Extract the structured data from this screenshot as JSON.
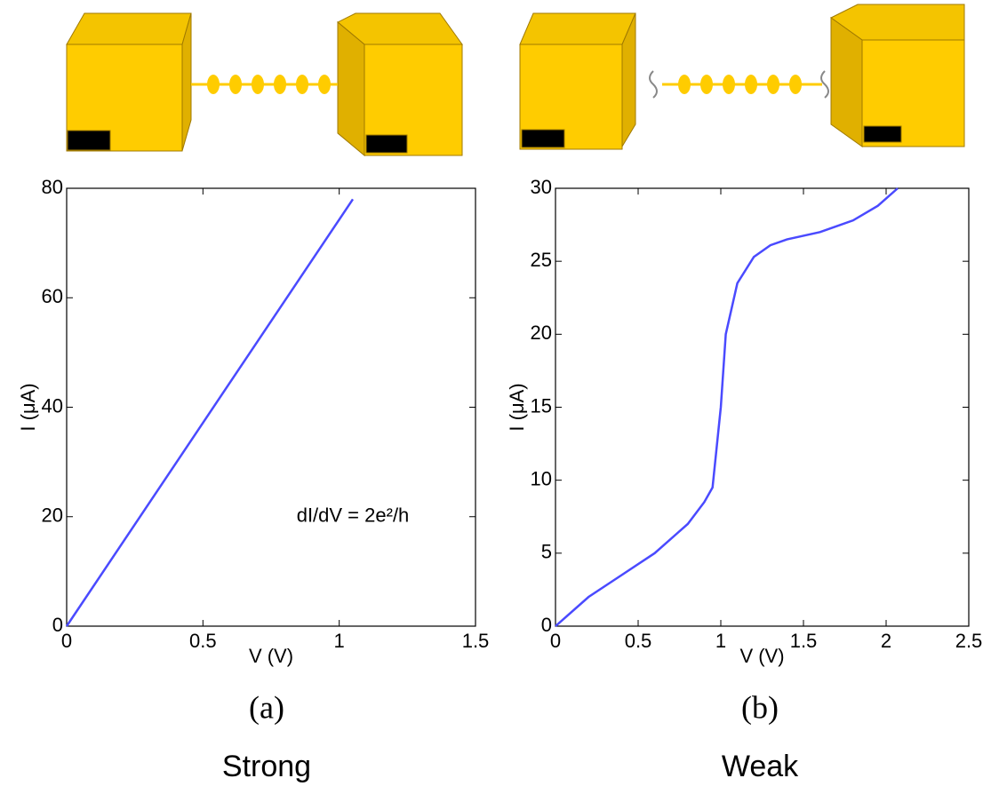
{
  "chart_data": [
    {
      "type": "line",
      "label": "(a)",
      "caption": "Strong",
      "xlabel": "V (V)",
      "ylabel": "I (μA)",
      "annotation": "dI/dV = 2e²/h",
      "x": [
        0,
        1.05
      ],
      "values": [
        0,
        78
      ],
      "color": "#4a4aff",
      "xlim": [
        0,
        1.5
      ],
      "xticks": [
        0,
        0.5,
        1,
        1.5
      ],
      "ylim": [
        0,
        80
      ],
      "yticks": [
        0,
        20,
        40,
        60,
        80
      ]
    },
    {
      "type": "line",
      "label": "(b)",
      "caption": "Weak",
      "xlabel": "V (V)",
      "ylabel": "I (μA)",
      "x": [
        0,
        0.2,
        0.4,
        0.6,
        0.8,
        0.9,
        0.95,
        1.0,
        1.03,
        1.1,
        1.2,
        1.3,
        1.4,
        1.6,
        1.8,
        1.95,
        2.07
      ],
      "values": [
        0,
        2,
        3.5,
        5,
        7,
        8.5,
        9.5,
        15,
        20,
        23.5,
        25.3,
        26.1,
        26.5,
        27,
        27.8,
        28.8,
        30
      ],
      "color": "#4a4aff",
      "xlim": [
        0,
        2.5
      ],
      "xticks": [
        0,
        0.5,
        1,
        1.5,
        2,
        2.5
      ],
      "ylim": [
        0,
        30
      ],
      "yticks": [
        0,
        5,
        10,
        15,
        20,
        25,
        30
      ]
    }
  ]
}
